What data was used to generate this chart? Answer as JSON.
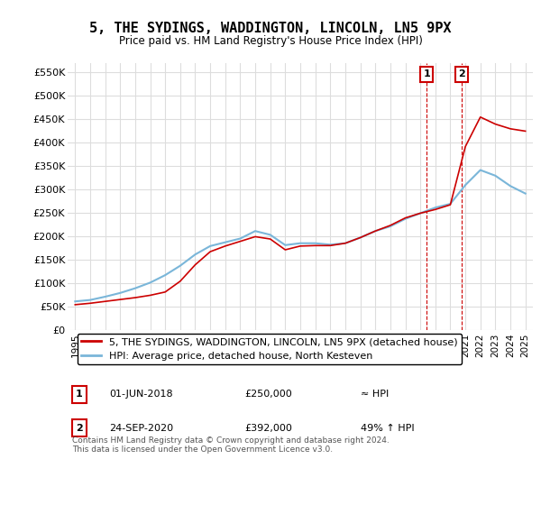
{
  "title": "5, THE SYDINGS, WADDINGTON, LINCOLN, LN5 9PX",
  "subtitle": "Price paid vs. HM Land Registry's House Price Index (HPI)",
  "ylim": [
    0,
    570000
  ],
  "yticks": [
    0,
    50000,
    100000,
    150000,
    200000,
    250000,
    300000,
    350000,
    400000,
    450000,
    500000,
    550000
  ],
  "ytick_labels": [
    "£0",
    "£50K",
    "£100K",
    "£150K",
    "£200K",
    "£250K",
    "£300K",
    "£350K",
    "£400K",
    "£450K",
    "£500K",
    "£550K"
  ],
  "xlim_start": 1994.5,
  "xlim_end": 2025.5,
  "xticks": [
    1995,
    1996,
    1997,
    1998,
    1999,
    2000,
    2001,
    2002,
    2003,
    2004,
    2005,
    2006,
    2007,
    2008,
    2009,
    2010,
    2011,
    2012,
    2013,
    2014,
    2015,
    2016,
    2017,
    2018,
    2019,
    2020,
    2021,
    2022,
    2023,
    2024,
    2025
  ],
  "hpi_color": "#7ab6d9",
  "price_color": "#cc0000",
  "annotation_box_color": "#cc0000",
  "background_color": "#ffffff",
  "grid_color": "#dddddd",
  "sale1_x": 2018.42,
  "sale1_y": 250000,
  "sale1_label": "1",
  "sale2_x": 2020.75,
  "sale2_y": 392000,
  "sale2_label": "2",
  "legend_line1": "5, THE SYDINGS, WADDINGTON, LINCOLN, LN5 9PX (detached house)",
  "legend_line2": "HPI: Average price, detached house, North Kesteven",
  "table_row1": [
    "1",
    "01-JUN-2018",
    "£250,000",
    "≈ HPI"
  ],
  "table_row2": [
    "2",
    "24-SEP-2020",
    "£392,000",
    "49% ↑ HPI"
  ],
  "footnote": "Contains HM Land Registry data © Crown copyright and database right 2024.\nThis data is licensed under the Open Government Licence v3.0.",
  "hpi_data_x": [
    1995,
    1996,
    1997,
    1998,
    1999,
    2000,
    2001,
    2002,
    2003,
    2004,
    2005,
    2006,
    2007,
    2008,
    2009,
    2010,
    2011,
    2012,
    2013,
    2014,
    2015,
    2016,
    2017,
    2018,
    2019,
    2020,
    2021,
    2022,
    2023,
    2024,
    2025
  ],
  "hpi_data_y": [
    62000,
    65000,
    72000,
    80000,
    90000,
    102000,
    118000,
    138000,
    162000,
    180000,
    188000,
    196000,
    212000,
    204000,
    182000,
    186000,
    186000,
    183000,
    186000,
    198000,
    212000,
    222000,
    238000,
    250000,
    262000,
    270000,
    310000,
    342000,
    330000,
    308000,
    292000
  ],
  "price_data_x": [
    1995,
    1996,
    1997,
    1998,
    1999,
    2000,
    2001,
    2002,
    2003,
    2004,
    2005,
    2006,
    2007,
    2008,
    2009,
    2010,
    2011,
    2012,
    2013,
    2014,
    2015,
    2016,
    2017,
    2018,
    2019,
    2020,
    2021,
    2022,
    2023,
    2024,
    2025
  ],
  "price_data_y": [
    55000,
    58000,
    62000,
    66000,
    70000,
    75000,
    82000,
    105000,
    140000,
    168000,
    180000,
    190000,
    200000,
    195000,
    172000,
    180000,
    181000,
    181000,
    186000,
    198000,
    212000,
    224000,
    240000,
    250000,
    258000,
    268000,
    392000,
    455000,
    440000,
    430000,
    425000
  ]
}
